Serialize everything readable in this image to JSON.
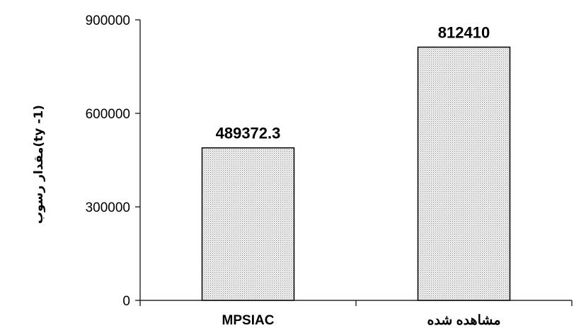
{
  "chart_data": {
    "type": "bar",
    "categories": [
      "MPSIAC",
      "مشاهده شده"
    ],
    "values": [
      489372.3,
      812410
    ],
    "value_labels": [
      "489372.3",
      "812410"
    ],
    "ylabel": "مقدار رسوب(ty -1)",
    "ylim": [
      0,
      900000
    ],
    "yticks": [
      0,
      300000,
      600000,
      900000
    ],
    "ytick_labels": [
      "0",
      "300000",
      "600000",
      "900000"
    ],
    "grid": false,
    "legend": "none",
    "bar_fill": "#e2e2e2",
    "bar_stroke": "#000000"
  }
}
